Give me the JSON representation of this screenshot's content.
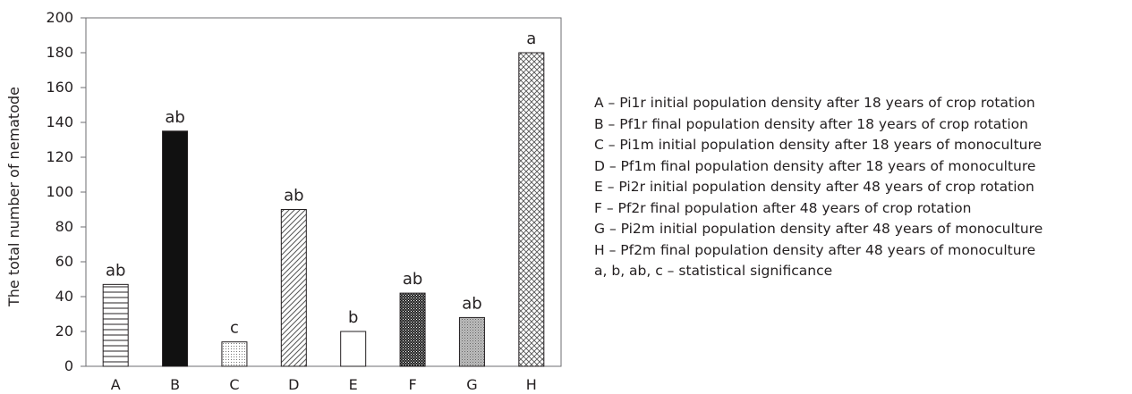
{
  "chart_data": {
    "type": "bar",
    "title": "",
    "xlabel": "",
    "ylabel": "The total number of nematode",
    "ylim": [
      0,
      200
    ],
    "yticks": [
      0,
      20,
      40,
      60,
      80,
      100,
      120,
      140,
      160,
      180,
      200
    ],
    "grid": false,
    "categories": [
      "A",
      "B",
      "C",
      "D",
      "E",
      "F",
      "G",
      "H"
    ],
    "values": [
      47,
      135,
      14,
      90,
      20,
      42,
      28,
      180
    ],
    "significance": [
      "ab",
      "ab",
      "c",
      "ab",
      "b",
      "ab",
      "ab",
      "a"
    ],
    "patterns": [
      "horizontal-lines",
      "solid-black",
      "fine-dots",
      "diagonal-lines",
      "empty",
      "dense-checker",
      "grey-dots",
      "crosshatch"
    ],
    "legend_position": "right",
    "legend": [
      "A – Pi1r initial population density after 18 years of crop rotation",
      "B – Pf1r final population density after 18 years of crop rotation",
      "C – Pi1m initial population density after 18 years of monoculture",
      "D – Pf1m final population density after 18 years of monoculture",
      "E – Pi2r initial population density after 48 years of crop rotation",
      "F – Pf2r final population after 48 years of crop rotation",
      "G – Pi2m initial population density after 48 years of monoculture",
      "H – Pf2m final population density after 48 years of monoculture",
      "a, b, ab, c – statistical significance"
    ]
  }
}
